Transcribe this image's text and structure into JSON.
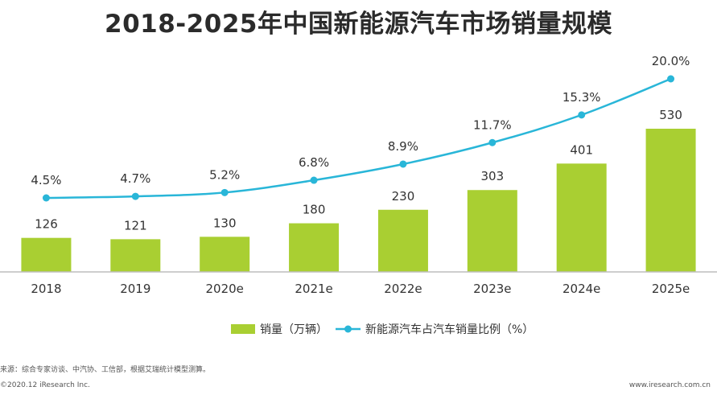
{
  "colors": {
    "bar": "#a9cf32",
    "line": "#29b6d8",
    "axis": "#bdbdbd",
    "text": "#333333"
  },
  "chart_data": {
    "type": "bar",
    "title": "2018-2025年中国新能源汽车市场销量规模",
    "categories": [
      "2018",
      "2019",
      "2020e",
      "2021e",
      "2022e",
      "2023e",
      "2024e",
      "2025e"
    ],
    "series": [
      {
        "name": "销量（万辆）",
        "type": "bar",
        "values": [
          126,
          121,
          130,
          180,
          230,
          303,
          401,
          530
        ],
        "labels": [
          "126",
          "121",
          "130",
          "180",
          "230",
          "303",
          "401",
          "530"
        ]
      },
      {
        "name": "新能源汽车占汽车销量比例（%）",
        "type": "line",
        "values": [
          4.5,
          4.7,
          5.2,
          6.8,
          8.9,
          11.7,
          15.3,
          20.0
        ],
        "labels": [
          "4.5%",
          "4.7%",
          "5.2%",
          "6.8%",
          "8.9%",
          "11.7%",
          "15.3%",
          "20.0%"
        ]
      }
    ],
    "legend_position": "bottom-center",
    "grid": false
  },
  "footer": {
    "source": "来源：综合专家访谈、中汽协、工信部，根据艾瑞统计模型测算。",
    "copyright": "©2020.12 iResearch Inc.",
    "website": "www.iresearch.com.cn"
  }
}
